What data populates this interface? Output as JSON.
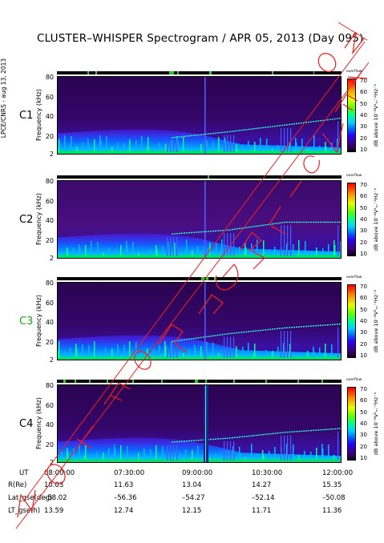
{
  "header": {
    "title": "CLUSTER–WHISPER Spectrogram / APR 05, 2013 (Day 095)",
    "credit": "LPCE/CNRS - aug 13, 2013"
  },
  "stamp_text": "NOT FOR PUBLICATION",
  "colorbar": {
    "label": "dB above 10⁻⁸V²ₘ⁻²Hz⁻¹",
    "word": "overflow",
    "ticks": [
      "70",
      "60",
      "50",
      "40",
      "30",
      "20",
      "10"
    ]
  },
  "panels": [
    {
      "name": "C1",
      "color": "#000000"
    },
    {
      "name": "C2",
      "color": "#000000"
    },
    {
      "name": "C3",
      "color": "#10b010"
    },
    {
      "name": "C4",
      "color": "#000000"
    }
  ],
  "yaxis": {
    "label": "Frequency (kHz)",
    "ticks": [
      "80",
      "60",
      "40",
      "20",
      "2"
    ]
  },
  "ephemeris": {
    "labels": [
      "UT",
      "R(Re)",
      "Lat_gse(deg)",
      "LT_gse(h)"
    ],
    "times": [
      "08:00:00",
      "07:30:00",
      "09:00:00",
      "10:30:00",
      "12:00:00"
    ],
    "R": [
      "10.03",
      "11.63",
      "13.04",
      "14.27",
      "15.35"
    ],
    "Lat": [
      "–58.02",
      "–56.36",
      "–54.27",
      "–52.14",
      "–50.08"
    ],
    "LT": [
      "13.59",
      "12.74",
      "12.15",
      "11.71",
      "11.36"
    ]
  },
  "chart_data": {
    "type": "heatmap",
    "title": "CLUSTER–WHISPER Spectrogram / APR 05, 2013 (Day 095)",
    "xlabel": "UT",
    "ylabel": "Frequency (kHz)",
    "x_ticks": [
      "08:00:00",
      "07:30:00",
      "09:00:00",
      "10:30:00",
      "12:00:00"
    ],
    "y_ticks": [
      2,
      20,
      40,
      60,
      80
    ],
    "ylim": [
      2,
      82
    ],
    "colorbar": {
      "label": "dB above 10⁻⁸V²m⁻²Hz⁻¹",
      "range": [
        10,
        70
      ]
    },
    "series": [
      {
        "name": "C1",
        "cutoff_khz": [
          null,
          null,
          20,
          26,
          33,
          40
        ]
      },
      {
        "name": "C2",
        "cutoff_khz": [
          null,
          null,
          28,
          32,
          40,
          40
        ]
      },
      {
        "name": "C3",
        "cutoff_khz": [
          null,
          null,
          22,
          30,
          36,
          40
        ]
      },
      {
        "name": "C4",
        "cutoff_khz": [
          null,
          null,
          24,
          28,
          34,
          38
        ]
      }
    ],
    "x": [
      "08:00",
      "08:48",
      "09:36",
      "10:24",
      "11:12",
      "12:00"
    ]
  }
}
